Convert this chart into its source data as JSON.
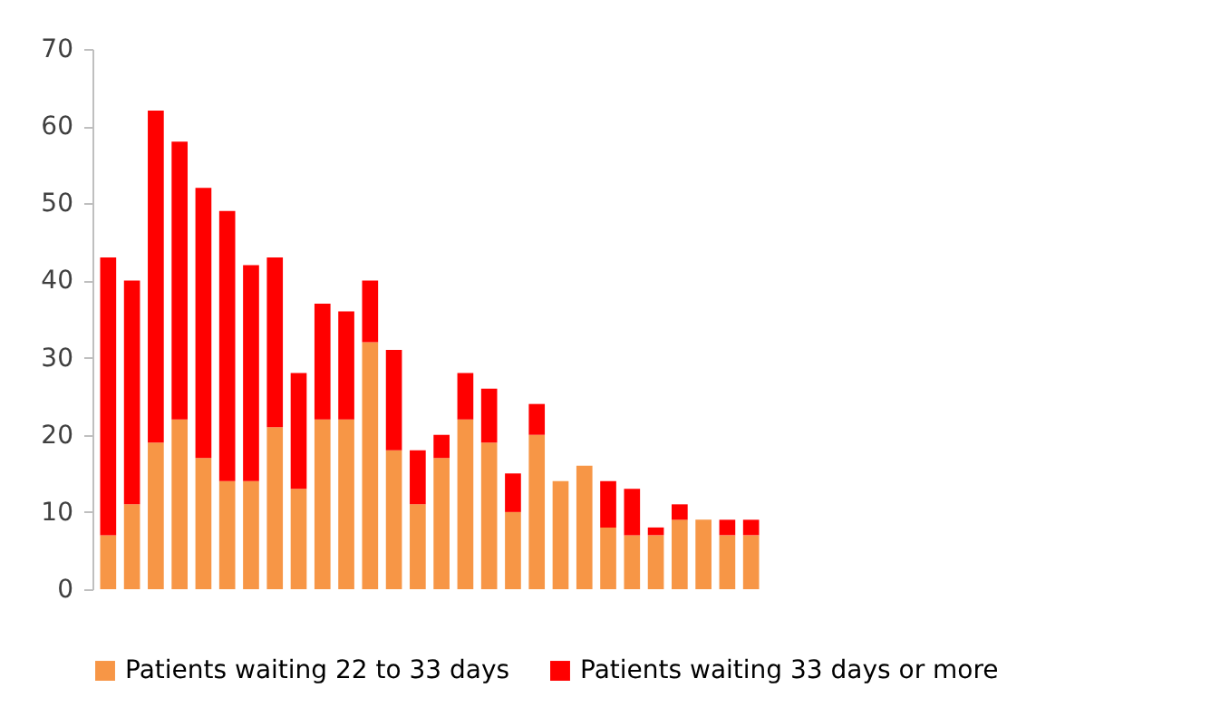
{
  "chart_data": {
    "type": "bar",
    "stacked": true,
    "categories": [
      null,
      null,
      null,
      null,
      null,
      null,
      null,
      null,
      null,
      null,
      null,
      null,
      null,
      null,
      null,
      null,
      null,
      null,
      null,
      null,
      null,
      null,
      null,
      null,
      null,
      null,
      null,
      null
    ],
    "series": [
      {
        "name": "Patients waiting 22 to 33 days",
        "color": "#f79646",
        "values": [
          7,
          11,
          19,
          22,
          17,
          14,
          14,
          21,
          13,
          22,
          22,
          32,
          18,
          11,
          17,
          22,
          19,
          10,
          20,
          14,
          16,
          8,
          7,
          7,
          9,
          9,
          7,
          7
        ]
      },
      {
        "name": "Patients waiting 33 days or more",
        "color": "#ff0000",
        "values": [
          36,
          29,
          43,
          36,
          35,
          35,
          28,
          22,
          15,
          15,
          14,
          8,
          13,
          7,
          3,
          6,
          7,
          5,
          4,
          0,
          0,
          6,
          6,
          1,
          2,
          0,
          2,
          2
        ]
      }
    ],
    "ylim": [
      0,
      70
    ],
    "yticks": [
      0,
      10,
      20,
      30,
      40,
      50,
      60,
      70
    ],
    "grid": false,
    "legend": "bottom"
  }
}
